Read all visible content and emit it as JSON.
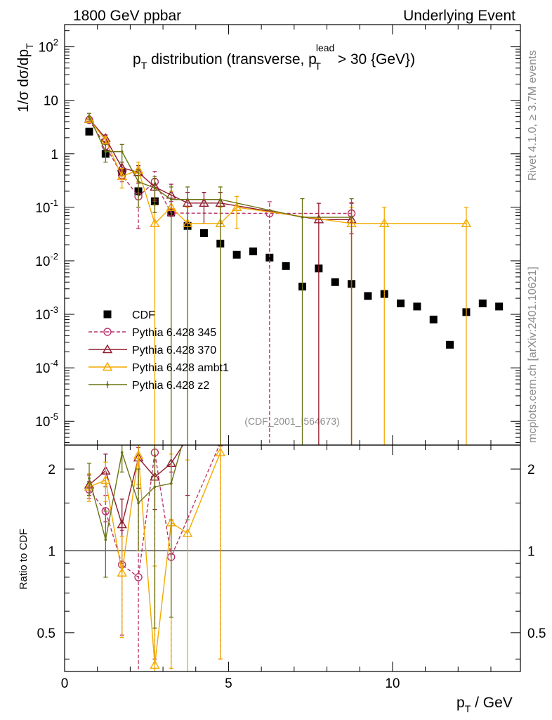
{
  "header": {
    "left": "1800 GeV ppbar",
    "right": "Underlying Event"
  },
  "side": {
    "rivet": "Rivet 4.1.0, ≥ 3.7M events",
    "mcplots": "mcplots.cern.ch [arXiv:2401.10621]"
  },
  "watermark": "(CDF_2001_I564673)",
  "colors": {
    "cdf": "#000000",
    "p345": "#b8336a",
    "p370": "#8f1a2e",
    "ambt1": "#f2a900",
    "z2": "#6b7314"
  },
  "chart_data": [
    {
      "type": "scatter",
      "panel": "main",
      "title": "pT distribution (transverse, pT lead > 30 {GeV})",
      "title_parts": {
        "p": "p",
        "sub": "T",
        "mid": " distribution (transverse, p",
        "sup": "lead",
        "sub2": "T",
        "end": " > 30 {GeV})"
      },
      "ylabel_parts": {
        "a": "1/σ  dσ/dp",
        "sub": "T"
      },
      "xlabel_parts": {
        "a": "p",
        "sub": "T",
        "b": " / GeV"
      },
      "xlim": [
        0,
        13.9
      ],
      "ylim": [
        3.6e-06,
        260
      ],
      "yscale": "log",
      "x_ticks": [
        {
          "value": 0,
          "label": "0"
        },
        {
          "value": 5,
          "label": "5"
        },
        {
          "value": 10,
          "label": "10"
        }
      ],
      "y_ticks": [
        {
          "value": 1e-05,
          "label_base": "10",
          "label_exp": "-5"
        },
        {
          "value": 0.0001,
          "label_base": "10",
          "label_exp": "-4"
        },
        {
          "value": 0.001,
          "label_base": "10",
          "label_exp": "-3"
        },
        {
          "value": 0.01,
          "label_base": "10",
          "label_exp": "-2"
        },
        {
          "value": 0.1,
          "label_base": "10",
          "label_exp": "-1"
        },
        {
          "value": 1,
          "label_base": "1",
          "label_exp": ""
        },
        {
          "value": 10,
          "label_base": "10",
          "label_exp": ""
        },
        {
          "value": 100,
          "label_base": "10",
          "label_exp": "2"
        }
      ],
      "legend_position": "bottom-left",
      "series": [
        {
          "name": "CDF",
          "color": "#000000",
          "marker": "square",
          "x": [
            0.75,
            1.25,
            1.75,
            2.25,
            2.75,
            3.25,
            3.75,
            4.25,
            4.75,
            5.25,
            5.75,
            6.25,
            6.75,
            7.25,
            7.75,
            8.25,
            8.75,
            9.25,
            9.75,
            10.25,
            10.75,
            11.25,
            11.75,
            12.25,
            12.75,
            13.25
          ],
          "y": [
            2.6,
            1.0,
            0.45,
            0.2,
            0.13,
            0.08,
            0.045,
            0.033,
            0.021,
            0.013,
            0.015,
            0.0115,
            0.008,
            0.0033,
            0.0072,
            0.004,
            0.0037,
            0.0022,
            0.0024,
            0.0016,
            0.0014,
            0.0008,
            0.00027,
            0.0011,
            0.0016,
            0.0014
          ]
        },
        {
          "name": "Pythia 6.428 345",
          "color": "#b8336a",
          "marker": "circle",
          "dash": "5,3",
          "x": [
            0.75,
            1.25,
            1.75,
            2.25,
            2.75,
            3.25,
            6.25,
            8.75
          ],
          "y": [
            4.3,
            1.4,
            0.4,
            0.16,
            0.3,
            0.078,
            0.077,
            0.077
          ],
          "err_lo": [
            0.4,
            0.2,
            0.1,
            0.12,
            0.17,
            0.078,
            0.077,
            0.045
          ],
          "err_hi": [
            0.4,
            0.2,
            0.1,
            0.12,
            0.17,
            0.05,
            0.05,
            0.045
          ]
        },
        {
          "name": "Pythia 6.428 370",
          "color": "#8f1a2e",
          "marker": "triangle",
          "x": [
            0.75,
            1.25,
            1.75,
            2.25,
            2.75,
            3.25,
            3.75,
            4.25,
            4.75,
            7.75,
            8.75
          ],
          "y": [
            4.5,
            1.95,
            0.55,
            0.45,
            0.24,
            0.17,
            0.12,
            0.12,
            0.12,
            0.059,
            0.059
          ],
          "err_lo": [
            0.5,
            0.3,
            0.15,
            0.15,
            0.1,
            0.1,
            0.07,
            0.07,
            0.07,
            0.059,
            0.059
          ],
          "err_hi": [
            0.5,
            0.3,
            0.15,
            0.15,
            0.1,
            0.1,
            0.07,
            0.07,
            0.07,
            0.06,
            0.06
          ]
        },
        {
          "name": "Pythia 6.428 ambt1",
          "color": "#f2a900",
          "marker": "triangle",
          "x": [
            0.75,
            1.25,
            1.75,
            2.25,
            2.75,
            3.25,
            3.75,
            4.75,
            5.25,
            8.75,
            9.75,
            12.25
          ],
          "y": [
            4.4,
            1.8,
            0.38,
            0.5,
            0.05,
            0.1,
            0.05,
            0.05,
            0.1,
            0.05,
            0.05,
            0.05
          ],
          "err_lo": [
            0.5,
            0.3,
            0.15,
            0.2,
            0.05,
            0.1,
            0.05,
            0.05,
            0.06,
            0.05,
            0.05,
            0.05
          ],
          "err_hi": [
            0.5,
            0.3,
            0.15,
            0.2,
            0.06,
            0.1,
            0.05,
            0.05,
            0.06,
            0.05,
            0.05,
            0.05
          ]
        },
        {
          "name": "Pythia 6.428 z2",
          "color": "#6b7314",
          "marker": "dot",
          "x": [
            0.75,
            1.25,
            1.75,
            2.25,
            2.75,
            3.25,
            3.75,
            4.75,
            7.25,
            8.75
          ],
          "y": [
            5.0,
            1.1,
            1.1,
            0.3,
            0.23,
            0.14,
            0.14,
            0.14,
            0.065,
            0.065
          ],
          "err_lo": [
            0.7,
            0.4,
            0.4,
            0.2,
            0.15,
            0.14,
            0.14,
            0.14,
            0.065,
            0.065
          ],
          "err_hi": [
            0.7,
            0.4,
            0.4,
            0.2,
            0.15,
            0.1,
            0.1,
            0.1,
            0.08,
            0.08
          ]
        }
      ]
    },
    {
      "type": "line",
      "panel": "ratio",
      "ylabel": "Ratio to CDF",
      "xlim": [
        0,
        13.9
      ],
      "ylim": [
        0.36,
        2.45
      ],
      "yscale": "log",
      "y_ticks": [
        {
          "value": 0.5,
          "label": "0.5"
        },
        {
          "value": 1,
          "label": "1"
        },
        {
          "value": 2,
          "label": "2"
        }
      ],
      "reference_line": 1,
      "series": [
        {
          "name": "Pythia 6.428 345",
          "color": "#b8336a",
          "marker": "circle",
          "dash": "5,3",
          "x": [
            0.75,
            1.25,
            1.75,
            2.25,
            2.75,
            3.25,
            4.75
          ],
          "y": [
            1.68,
            1.4,
            0.89,
            0.8,
            2.3,
            0.95,
            2.5
          ],
          "err_lo": [
            0.12,
            0.12,
            0.4,
            0.5,
            1.9,
            0.8,
            2.1
          ],
          "err_hi": [
            0.12,
            0.2,
            0.3,
            1.6,
            1.0,
            1.0,
            0.5
          ]
        },
        {
          "name": "Pythia 6.428 370",
          "color": "#8f1a2e",
          "marker": "triangle",
          "x": [
            0.75,
            1.25,
            1.75,
            2.25,
            2.75,
            3.25,
            3.75
          ],
          "y": [
            1.75,
            1.97,
            1.25,
            2.2,
            1.87,
            2.1,
            2.6
          ],
          "err_lo": [
            0.15,
            0.25,
            0.35,
            0.5,
            0.45,
            0.8,
            1.0
          ],
          "err_hi": [
            0.15,
            0.3,
            0.3,
            0.5,
            0.6,
            0.6,
            1.0
          ]
        },
        {
          "name": "Pythia 6.428 ambt1",
          "color": "#f2a900",
          "marker": "triangle",
          "x": [
            0.75,
            1.25,
            1.75,
            2.25,
            2.75,
            3.25,
            3.75,
            4.75
          ],
          "y": [
            1.72,
            1.82,
            0.83,
            2.25,
            0.38,
            1.27,
            1.16,
            2.3
          ],
          "err_lo": [
            0.2,
            0.3,
            0.35,
            0.5,
            0.3,
            0.9,
            0.8,
            1.9
          ],
          "err_hi": [
            0.2,
            0.3,
            0.3,
            0.5,
            0.5,
            1.0,
            1.0,
            0.5
          ]
        },
        {
          "name": "Pythia 6.428 z2",
          "color": "#6b7314",
          "marker": "dot",
          "x": [
            0.75,
            1.25,
            1.75,
            2.25,
            2.75,
            3.25,
            3.75
          ],
          "y": [
            1.85,
            1.1,
            2.3,
            1.5,
            1.72,
            1.77,
            2.9
          ],
          "err_lo": [
            0.25,
            0.3,
            0.35,
            0.5,
            1.2,
            1.2,
            1.6
          ],
          "err_hi": [
            0.25,
            0.3,
            0.3,
            0.5,
            1.0,
            1.0,
            1.0
          ]
        }
      ]
    }
  ]
}
